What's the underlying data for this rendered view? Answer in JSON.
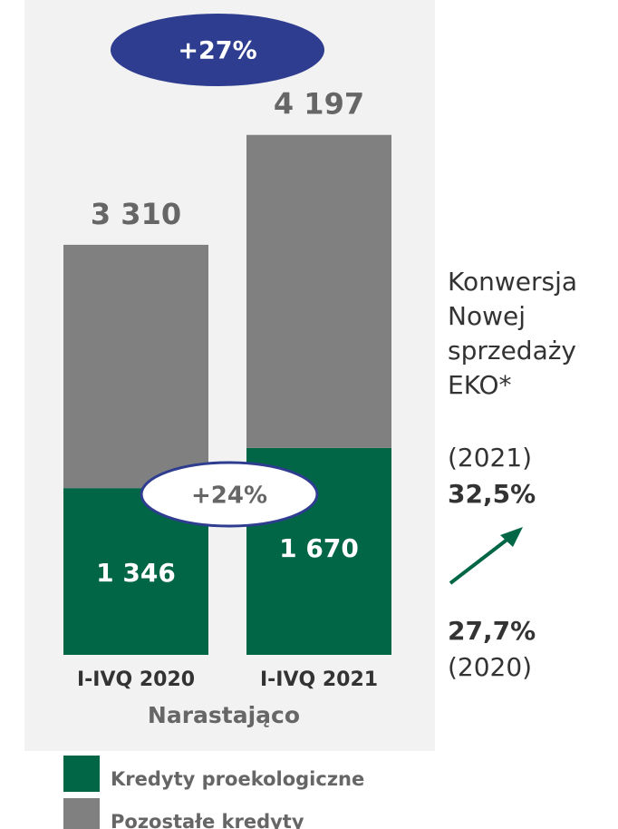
{
  "chart_data": {
    "type": "stacked_bar",
    "categories": [
      "I-IVQ 2020",
      "I-IVQ 2021"
    ],
    "series": [
      {
        "name": "Kredyty proekologiczne",
        "color": "#006646",
        "values": [
          1346,
          1670
        ],
        "value_labels": [
          "1 346",
          "1 670"
        ]
      },
      {
        "name": "Pozostałe kredyty",
        "color": "#808080",
        "values": [
          1964,
          2527
        ]
      }
    ],
    "totals": [
      3310,
      4197
    ],
    "total_labels": [
      "3 310",
      "4 197"
    ],
    "ylim": [
      0,
      5286
    ],
    "xlabel": "Narastająco",
    "annotations": {
      "total_growth": "+27%",
      "green_growth": "+24%"
    },
    "side_title": [
      "Konwersja",
      "Nowej",
      "sprzedaży",
      "EKO*"
    ],
    "conversion": {
      "year_2021": "(2021)",
      "value_2021": 32.5,
      "label_2021": "32,5%",
      "value_2020": 27.7,
      "label_2020": "27,7%",
      "year_2020": "(2020)"
    }
  }
}
